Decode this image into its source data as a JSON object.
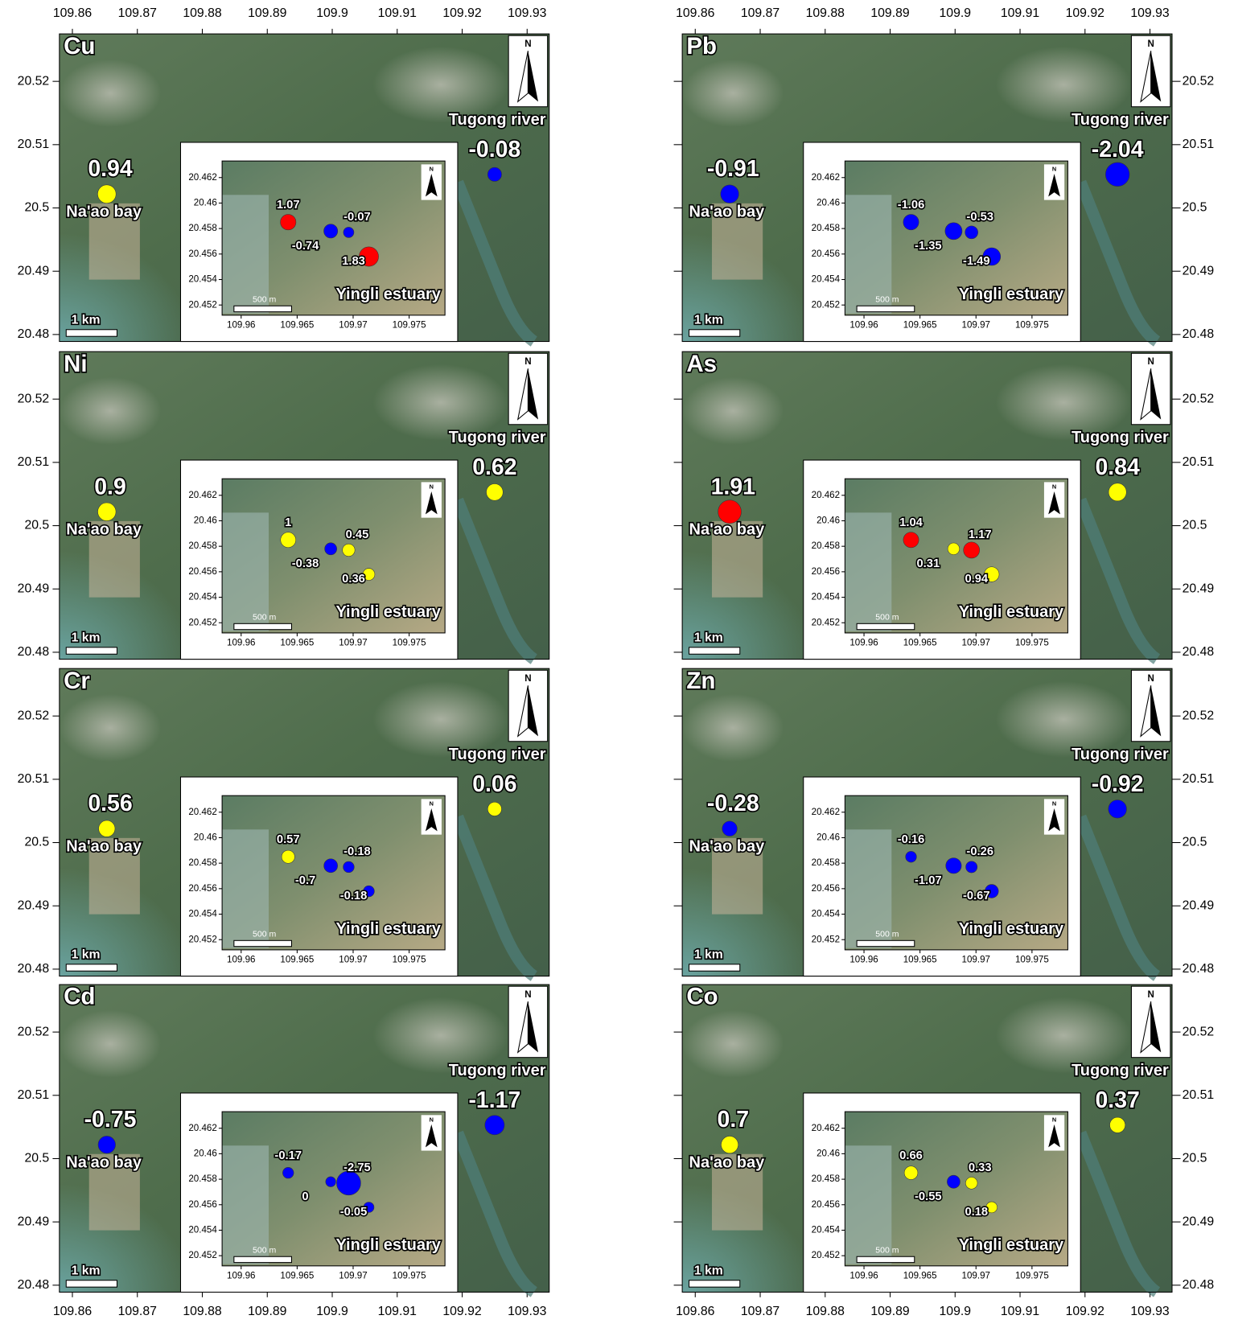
{
  "main_map": {
    "xlim": [
      109.858,
      109.9334
    ],
    "ylim": [
      20.4789,
      20.5275
    ],
    "xticks": [
      109.86,
      109.87,
      109.88,
      109.89,
      109.9,
      109.91,
      109.92,
      109.93
    ],
    "yticks": [
      20.48,
      20.49,
      20.5,
      20.51,
      20.52
    ],
    "scale_bar": "1 km",
    "north": "N",
    "sites": [
      {
        "name": "Na'ao bay",
        "lon": 109.8653,
        "lat": 20.5022
      },
      {
        "name": "Tugong river",
        "lon": 109.925,
        "lat": 20.5053
      }
    ]
  },
  "inset_map": {
    "title": "Yingli estuary",
    "xlim": [
      109.9583,
      109.9782
    ],
    "ylim": [
      20.4512,
      20.4633
    ],
    "xticks": [
      109.96,
      109.965,
      109.97,
      109.975
    ],
    "yticks": [
      20.452,
      20.454,
      20.456,
      20.458,
      20.46,
      20.462
    ],
    "scale_bar": "500 m",
    "north": "N",
    "sites": [
      {
        "lon": 109.9642,
        "lat": 20.4585
      },
      {
        "lon": 109.968,
        "lat": 20.4578
      },
      {
        "lon": 109.9696,
        "lat": 20.4577
      },
      {
        "lon": 109.9714,
        "lat": 20.4558
      }
    ]
  },
  "panels": [
    {
      "element": "Cu",
      "main_values": [
        0.94,
        -0.08
      ],
      "main_colors": [
        "#ffff00",
        "#0000ff"
      ],
      "inset_values": [
        1.07,
        -0.74,
        -0.07,
        1.83
      ],
      "inset_colors": [
        "#ff0000",
        "#0000ff",
        "#0000ff",
        "#ff0000"
      ]
    },
    {
      "element": "Pb",
      "main_values": [
        -0.91,
        -2.04
      ],
      "main_colors": [
        "#0000ff",
        "#0000ff"
      ],
      "inset_values": [
        -1.06,
        -1.35,
        -0.53,
        -1.49
      ],
      "inset_colors": [
        "#0000ff",
        "#0000ff",
        "#0000ff",
        "#0000ff"
      ]
    },
    {
      "element": "Ni",
      "main_values": [
        0.9,
        0.62
      ],
      "main_colors": [
        "#ffff00",
        "#ffff00"
      ],
      "inset_values": [
        1,
        -0.38,
        0.45,
        0.36
      ],
      "inset_colors": [
        "#ffff00",
        "#0000ff",
        "#ffff00",
        "#ffff00"
      ]
    },
    {
      "element": "As",
      "main_values": [
        1.91,
        0.84
      ],
      "main_colors": [
        "#ff0000",
        "#ffff00"
      ],
      "inset_values": [
        1.04,
        0.31,
        1.17,
        0.94
      ],
      "inset_colors": [
        "#ff0000",
        "#ffff00",
        "#ff0000",
        "#ffff00"
      ]
    },
    {
      "element": "Cr",
      "main_values": [
        0.56,
        0.06
      ],
      "main_colors": [
        "#ffff00",
        "#ffff00"
      ],
      "inset_values": [
        0.57,
        -0.7,
        -0.18,
        -0.18
      ],
      "inset_colors": [
        "#ffff00",
        "#0000ff",
        "#0000ff",
        "#0000ff"
      ]
    },
    {
      "element": "Zn",
      "main_values": [
        -0.28,
        -0.92
      ],
      "main_colors": [
        "#0000ff",
        "#0000ff"
      ],
      "inset_values": [
        -0.16,
        -1.07,
        -0.26,
        -0.67
      ],
      "inset_colors": [
        "#0000ff",
        "#0000ff",
        "#0000ff",
        "#0000ff"
      ]
    },
    {
      "element": "Cd",
      "main_values": [
        -0.75,
        -1.17
      ],
      "main_colors": [
        "#0000ff",
        "#0000ff"
      ],
      "inset_values": [
        -0.17,
        0,
        -2.75,
        -0.05
      ],
      "inset_colors": [
        "#0000ff",
        "#0000ff",
        "#0000ff",
        "#0000ff"
      ]
    },
    {
      "element": "Co",
      "main_values": [
        0.7,
        0.37
      ],
      "main_colors": [
        "#ffff00",
        "#ffff00"
      ],
      "inset_values": [
        0.66,
        -0.55,
        0.33,
        0.18
      ],
      "inset_colors": [
        "#ffff00",
        "#0000ff",
        "#ffff00",
        "#ffff00"
      ]
    }
  ]
}
